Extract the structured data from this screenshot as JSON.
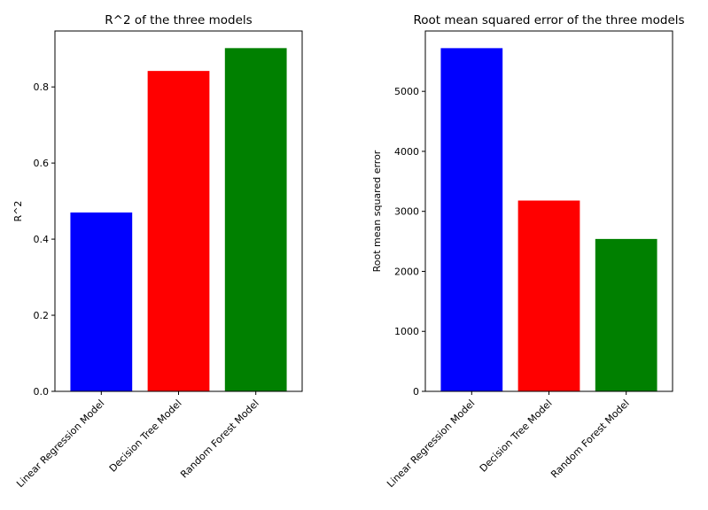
{
  "chart_data": [
    {
      "type": "bar",
      "title": "R^2 of the three models",
      "xlabel": "",
      "ylabel": "R^2",
      "categories": [
        "Linear Regression Model",
        "Decision Tree Model",
        "Random Forest Model"
      ],
      "values": [
        0.47,
        0.842,
        0.902
      ],
      "colors": [
        "#0000ff",
        "#ff0000",
        "#008000"
      ],
      "ylim": [
        0,
        0.947
      ],
      "yticks": [
        0.0,
        0.2,
        0.4,
        0.6,
        0.8
      ],
      "ytick_labels": [
        "0.0",
        "0.2",
        "0.4",
        "0.6",
        "0.8"
      ],
      "grid": false
    },
    {
      "type": "bar",
      "title": "Root mean squared error of the three models",
      "xlabel": "",
      "ylabel": "Root mean squared error",
      "categories": [
        "Linear Regression Model",
        "Decision Tree Model",
        "Random Forest Model"
      ],
      "values": [
        5720,
        3180,
        2540
      ],
      "colors": [
        "#0000ff",
        "#ff0000",
        "#008000"
      ],
      "ylim": [
        0,
        6006
      ],
      "yticks": [
        0,
        1000,
        2000,
        3000,
        4000,
        5000
      ],
      "ytick_labels": [
        "0",
        "1000",
        "2000",
        "3000",
        "4000",
        "5000"
      ],
      "grid": false
    }
  ]
}
